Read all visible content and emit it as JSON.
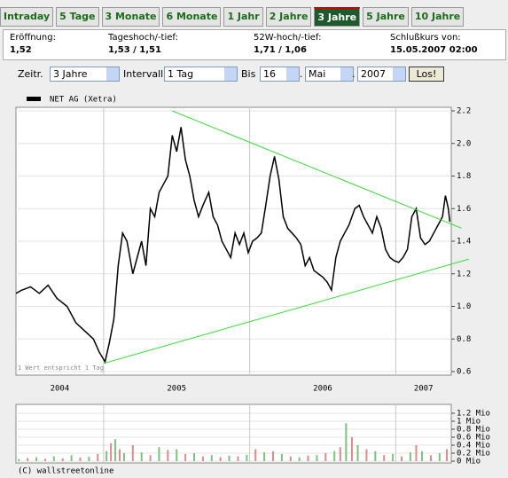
{
  "tabs": [
    "Intraday",
    "5 Tage",
    "3 Monate",
    "6 Monate",
    "1 Jahr",
    "2 Jahre",
    "3 Jahre",
    "5 Jahre",
    "10 Jahre"
  ],
  "active_tab": 6,
  "info": [
    {
      "label": "Eröffnung:",
      "value": "1,52"
    },
    {
      "label": "Tageshoch/-tief:",
      "value": "1,53 / 1,51"
    },
    {
      "label": "52W-hoch/-tief:",
      "value": "1,71 / 1,06"
    },
    {
      "label": "Schlußkurs von:",
      "value": "15.05.2007 02:00"
    }
  ],
  "controls": {
    "range_label": "Zeitr.",
    "range": "3 Jahre",
    "interval_label": "Intervall",
    "interval": "1 Tag",
    "until_label": "Bis",
    "day": "16",
    "separator": ".",
    "month": "Mai",
    "year": "2007",
    "button": "Los!"
  },
  "chart_data": [
    {
      "type": "line",
      "legend": "top-left",
      "series": [
        {
          "name": "NET AG (Xetra)",
          "color": "#000000",
          "x": [
            2004.4,
            2004.44,
            2004.5,
            2004.56,
            2004.62,
            2004.68,
            2004.75,
            2004.81,
            2004.87,
            2004.93,
            2004.97,
            2005.01,
            2005.04,
            2005.07,
            2005.1,
            2005.13,
            2005.16,
            2005.2,
            2005.23,
            2005.26,
            2005.29,
            2005.32,
            2005.35,
            2005.38,
            2005.41,
            2005.44,
            2005.47,
            2005.5,
            2005.53,
            2005.56,
            2005.59,
            2005.62,
            2005.65,
            2005.68,
            2005.72,
            2005.75,
            2005.78,
            2005.81,
            2005.84,
            2005.87,
            2005.9,
            2005.93,
            2005.96,
            2005.99,
            2006.02,
            2006.05,
            2006.08,
            2006.11,
            2006.14,
            2006.17,
            2006.2,
            2006.23,
            2006.26,
            2006.29,
            2006.32,
            2006.35,
            2006.38,
            2006.41,
            2006.44,
            2006.47,
            2006.5,
            2006.53,
            2006.56,
            2006.59,
            2006.62,
            2006.65,
            2006.68,
            2006.72,
            2006.75,
            2006.78,
            2006.81,
            2006.84,
            2006.87,
            2006.9,
            2006.93,
            2006.96,
            2006.99,
            2007.02,
            2007.05,
            2007.08,
            2007.11,
            2007.14,
            2007.17,
            2007.2,
            2007.23,
            2007.26,
            2007.29,
            2007.32,
            2007.34,
            2007.36,
            2007.37
          ],
          "values": [
            1.08,
            1.1,
            1.12,
            1.08,
            1.13,
            1.05,
            1.0,
            0.9,
            0.85,
            0.8,
            0.72,
            0.66,
            0.78,
            0.92,
            1.25,
            1.45,
            1.4,
            1.2,
            1.3,
            1.4,
            1.25,
            1.6,
            1.55,
            1.7,
            1.75,
            1.8,
            2.05,
            1.95,
            2.1,
            1.9,
            1.8,
            1.65,
            1.55,
            1.62,
            1.7,
            1.55,
            1.5,
            1.4,
            1.35,
            1.3,
            1.45,
            1.38,
            1.45,
            1.33,
            1.4,
            1.42,
            1.45,
            1.62,
            1.8,
            1.92,
            1.78,
            1.55,
            1.48,
            1.45,
            1.42,
            1.38,
            1.25,
            1.3,
            1.22,
            1.2,
            1.18,
            1.15,
            1.1,
            1.3,
            1.4,
            1.45,
            1.5,
            1.6,
            1.62,
            1.55,
            1.5,
            1.45,
            1.55,
            1.48,
            1.35,
            1.3,
            1.28,
            1.27,
            1.3,
            1.35,
            1.55,
            1.6,
            1.42,
            1.38,
            1.4,
            1.45,
            1.5,
            1.55,
            1.68,
            1.6,
            1.52
          ]
        }
      ],
      "xlim": [
        2004.4,
        2007.38
      ],
      "xticks": [
        2004,
        2005,
        2006,
        2007
      ],
      "ylim": [
        0.6,
        2.2
      ],
      "yticks": [
        0.6,
        0.8,
        {
          "value": 1,
          "label": "1.0"
        },
        1.2,
        1.4,
        1.6,
        1.8,
        {
          "value": 2,
          "label": "2.0"
        },
        2.2
      ],
      "grid": true,
      "note": "1 Wert entspricht 1 Tag",
      "trendlines": [
        {
          "x": [
            2005.47,
            2007.45
          ],
          "y": [
            2.2,
            1.48
          ],
          "color": "#33dd33"
        },
        {
          "x": [
            2005.0,
            2007.5
          ],
          "y": [
            0.65,
            1.29
          ],
          "color": "#33dd33"
        }
      ]
    },
    {
      "type": "bar",
      "x": [
        2004.42,
        2004.48,
        2004.54,
        2004.6,
        2004.66,
        2004.72,
        2004.78,
        2004.84,
        2004.9,
        2004.96,
        2005.02,
        2005.05,
        2005.08,
        2005.11,
        2005.14,
        2005.2,
        2005.26,
        2005.32,
        2005.38,
        2005.44,
        2005.5,
        2005.56,
        2005.62,
        2005.68,
        2005.74,
        2005.8,
        2005.86,
        2005.92,
        2005.98,
        2006.04,
        2006.1,
        2006.16,
        2006.22,
        2006.28,
        2006.34,
        2006.4,
        2006.46,
        2006.52,
        2006.58,
        2006.62,
        2006.66,
        2006.7,
        2006.74,
        2006.8,
        2006.86,
        2006.92,
        2006.98,
        2007.04,
        2007.1,
        2007.14,
        2007.18,
        2007.24,
        2007.3,
        2007.35
      ],
      "values": [
        0.05,
        0.08,
        0.1,
        0.06,
        0.12,
        0.07,
        0.15,
        0.09,
        0.11,
        0.18,
        0.25,
        0.45,
        0.55,
        0.3,
        0.2,
        0.4,
        0.22,
        0.15,
        0.35,
        0.28,
        0.3,
        0.18,
        0.2,
        0.12,
        0.15,
        0.1,
        0.14,
        0.12,
        0.16,
        0.3,
        0.22,
        0.25,
        0.18,
        0.12,
        0.1,
        0.14,
        0.15,
        0.2,
        0.25,
        0.35,
        0.95,
        0.6,
        0.4,
        0.3,
        0.25,
        0.15,
        0.18,
        0.12,
        0.22,
        0.4,
        0.25,
        0.15,
        0.2,
        0.3
      ],
      "colors": [
        "#7cc47c",
        "#e08a8a"
      ],
      "xlim": [
        2004.4,
        2007.38
      ],
      "xticks": [
        2005,
        2006,
        2007
      ],
      "ylim": [
        0,
        1.2
      ],
      "yticks": [
        {
          "value": 0,
          "label": "0 Mio"
        },
        {
          "value": 0.2,
          "label": "0.2 Mio"
        },
        {
          "value": 0.4,
          "label": "0.4 Mio"
        },
        {
          "value": 0.6,
          "label": "0.6 Mio"
        },
        {
          "value": 0.8,
          "label": "0.8 Mio"
        },
        {
          "value": 1,
          "label": "1 Mio"
        },
        {
          "value": 1.2,
          "label": "1.2 Mio"
        }
      ],
      "grid": true
    }
  ],
  "copyright": "(C) wallstreetonline"
}
